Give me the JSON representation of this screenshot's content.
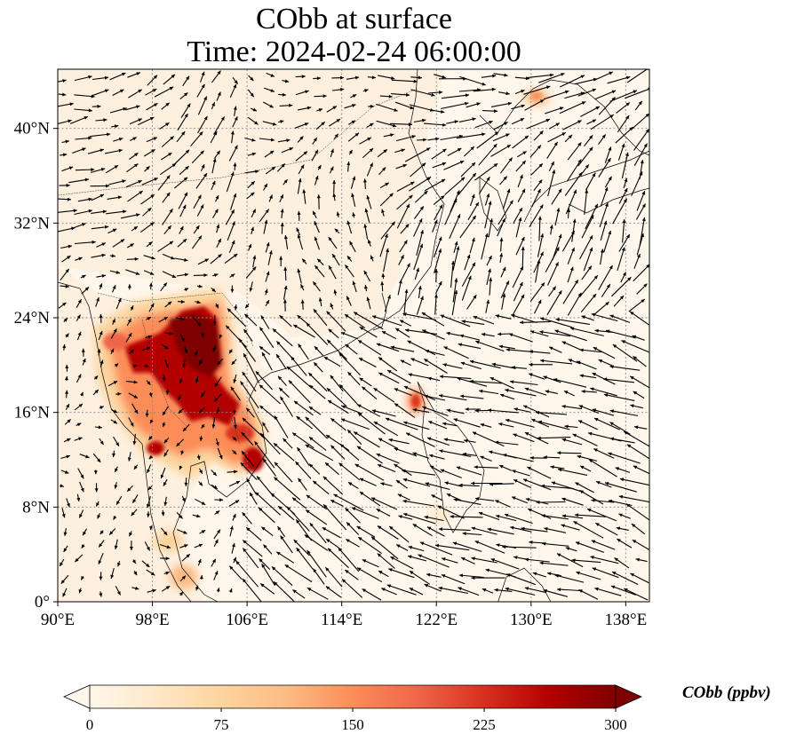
{
  "title": {
    "line1": "CObb at surface",
    "line2": "Time: 2024-02-24 06:00:00"
  },
  "map": {
    "projection": "PlateCarree",
    "lon_range": [
      90,
      140
    ],
    "lat_range": [
      0,
      45
    ],
    "lon_ticks": [
      {
        "value": 90,
        "label": "90°E"
      },
      {
        "value": 98,
        "label": "98°E"
      },
      {
        "value": 106,
        "label": "106°E"
      },
      {
        "value": 114,
        "label": "114°E"
      },
      {
        "value": 122,
        "label": "122°E"
      },
      {
        "value": 130,
        "label": "130°E"
      },
      {
        "value": 138,
        "label": "138°E"
      }
    ],
    "lat_ticks": [
      {
        "value": 0,
        "label": "0°"
      },
      {
        "value": 8,
        "label": "8°N"
      },
      {
        "value": 16,
        "label": "16°N"
      },
      {
        "value": 24,
        "label": "24°N"
      },
      {
        "value": 32,
        "label": "32°N"
      },
      {
        "value": 40,
        "label": "40°N"
      }
    ],
    "gridlines": "dotted",
    "overlay": "wind vectors (quiver)",
    "high_concentration_regions": [
      {
        "name": "Myanmar-Laos-Thailand burning area",
        "lon": [
          94,
          106
        ],
        "lat": [
          11,
          26
        ],
        "level": "very high"
      },
      {
        "name": "Northern Luzon",
        "lon": [
          120,
          121
        ],
        "lat": [
          16.5,
          18
        ],
        "level": "high"
      },
      {
        "name": "Northeast China / Liaoning",
        "lon": [
          129,
          130.5
        ],
        "lat": [
          42,
          43.5
        ],
        "level": "moderate"
      }
    ]
  },
  "colorbar": {
    "label": "CObb (ppbv)",
    "min": 0,
    "max": 300,
    "extend": "both",
    "colormap": "OrRd",
    "ticks": [
      {
        "value": 0,
        "label": "0"
      },
      {
        "value": 75,
        "label": "75"
      },
      {
        "value": 150,
        "label": "150"
      },
      {
        "value": 225,
        "label": "225"
      },
      {
        "value": 300,
        "label": "300"
      }
    ],
    "colors": [
      "#fff7ec",
      "#fee8c8",
      "#fdd49e",
      "#fdbb84",
      "#fc8d59",
      "#ef6548",
      "#d7301f",
      "#b30000",
      "#7f0000"
    ]
  }
}
